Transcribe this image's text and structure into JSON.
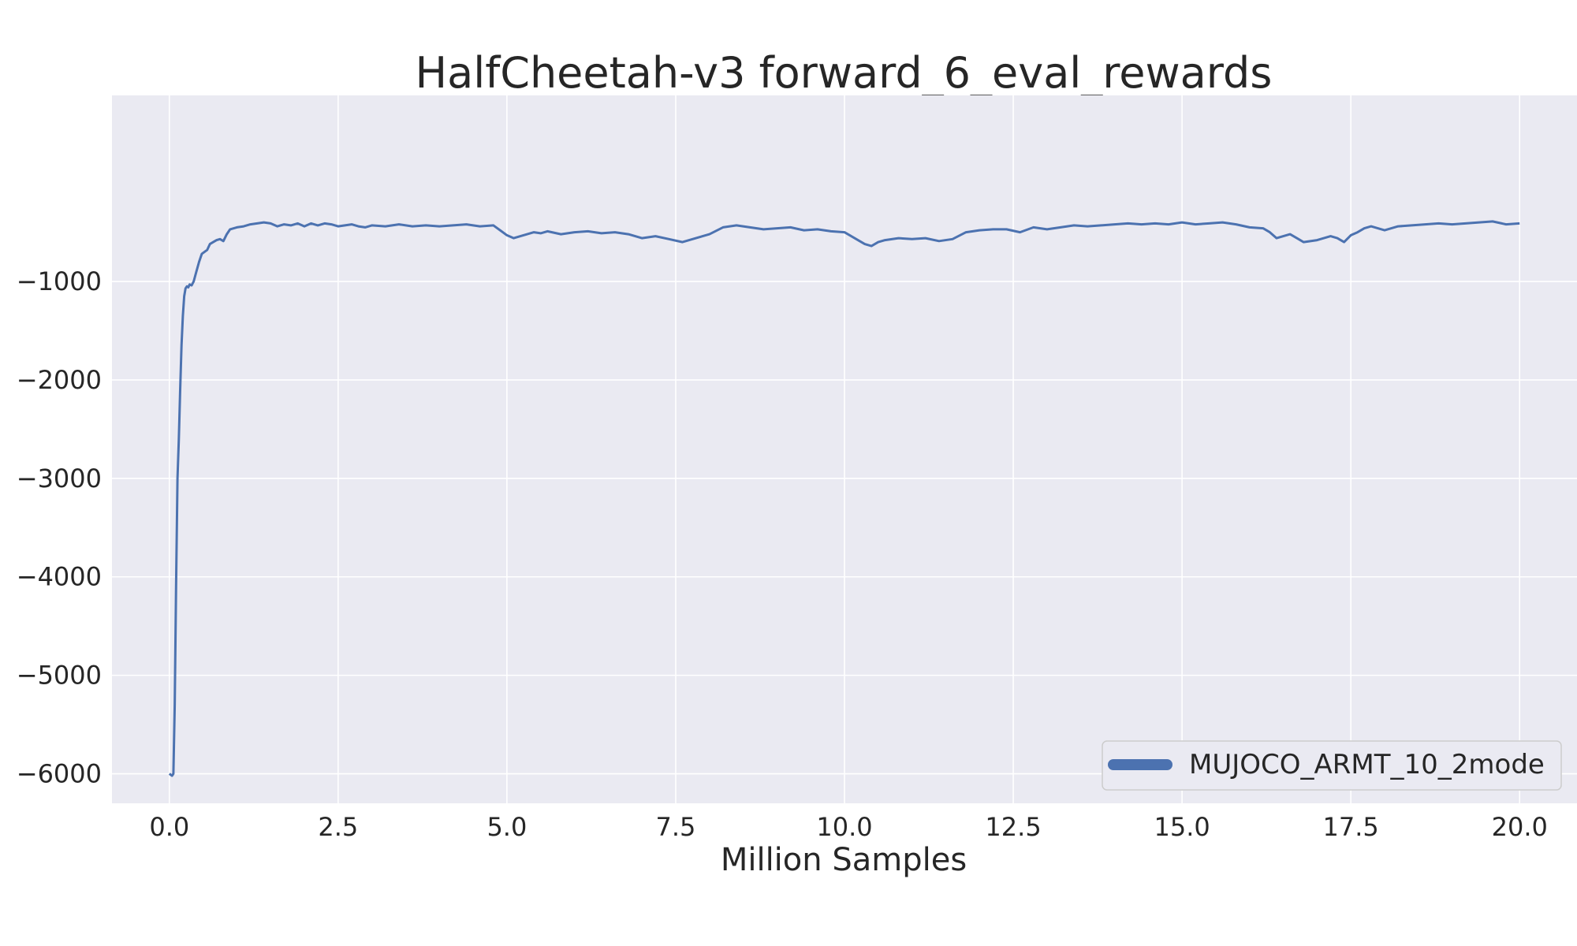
{
  "chart_data": {
    "type": "line",
    "title": "HalfCheetah-v3 forward_6_eval_rewards",
    "xlabel": "Million Samples",
    "ylabel": "",
    "xlim": [
      -0.85,
      20.85
    ],
    "ylim": [
      -6300,
      890
    ],
    "xticks": [
      0.0,
      2.5,
      5.0,
      7.5,
      10.0,
      12.5,
      15.0,
      17.5,
      20.0
    ],
    "xtick_labels": [
      "0.0",
      "2.5",
      "5.0",
      "7.5",
      "10.0",
      "12.5",
      "15.0",
      "17.5",
      "20.0"
    ],
    "yticks": [
      -6000,
      -5000,
      -4000,
      -3000,
      -2000,
      -1000
    ],
    "ytick_labels": [
      "−6000",
      "−5000",
      "−4000",
      "−3000",
      "−2000",
      "−1000"
    ],
    "grid": true,
    "legend_position": "bottom-right",
    "colors": {
      "plot_bg": "#eaeaf2",
      "grid": "#ffffff",
      "series": "#4c72b0"
    },
    "series": [
      {
        "name": "MUJOCO_ARMT_10_2mode",
        "x": [
          0.0,
          0.04,
          0.06,
          0.08,
          0.1,
          0.12,
          0.14,
          0.16,
          0.18,
          0.2,
          0.22,
          0.24,
          0.26,
          0.28,
          0.3,
          0.33,
          0.36,
          0.4,
          0.44,
          0.48,
          0.52,
          0.56,
          0.6,
          0.65,
          0.7,
          0.75,
          0.8,
          0.85,
          0.9,
          1.0,
          1.1,
          1.2,
          1.3,
          1.4,
          1.5,
          1.6,
          1.7,
          1.8,
          1.9,
          2.0,
          2.1,
          2.2,
          2.3,
          2.4,
          2.5,
          2.6,
          2.7,
          2.8,
          2.9,
          3.0,
          3.2,
          3.4,
          3.6,
          3.8,
          4.0,
          4.2,
          4.4,
          4.6,
          4.8,
          5.0,
          5.1,
          5.2,
          5.3,
          5.4,
          5.5,
          5.6,
          5.8,
          6.0,
          6.2,
          6.4,
          6.6,
          6.8,
          7.0,
          7.2,
          7.4,
          7.6,
          7.8,
          8.0,
          8.2,
          8.4,
          8.6,
          8.8,
          9.0,
          9.2,
          9.4,
          9.6,
          9.8,
          10.0,
          10.2,
          10.3,
          10.4,
          10.5,
          10.6,
          10.8,
          11.0,
          11.2,
          11.4,
          11.6,
          11.8,
          12.0,
          12.2,
          12.4,
          12.6,
          12.8,
          13.0,
          13.1,
          13.2,
          13.4,
          13.6,
          13.8,
          14.0,
          14.2,
          14.4,
          14.6,
          14.8,
          15.0,
          15.2,
          15.4,
          15.6,
          15.8,
          16.0,
          16.2,
          16.3,
          16.4,
          16.6,
          16.7,
          16.8,
          17.0,
          17.2,
          17.3,
          17.4,
          17.5,
          17.6,
          17.7,
          17.8,
          17.9,
          18.0,
          18.2,
          18.4,
          18.6,
          18.8,
          19.0,
          19.2,
          19.4,
          19.6,
          19.8,
          20.0
        ],
        "values": [
          -6000,
          -6020,
          -6000,
          -5300,
          -4100,
          -3000,
          -2600,
          -2100,
          -1650,
          -1350,
          -1150,
          -1070,
          -1050,
          -1060,
          -1030,
          -1040,
          -1000,
          -900,
          -800,
          -720,
          -700,
          -680,
          -620,
          -600,
          -580,
          -570,
          -590,
          -520,
          -470,
          -450,
          -440,
          -420,
          -410,
          -400,
          -410,
          -440,
          -420,
          -430,
          -410,
          -440,
          -410,
          -430,
          -410,
          -420,
          -440,
          -430,
          -420,
          -440,
          -450,
          -430,
          -440,
          -420,
          -440,
          -430,
          -440,
          -430,
          -420,
          -440,
          -430,
          -530,
          -560,
          -540,
          -520,
          -500,
          -510,
          -490,
          -520,
          -500,
          -490,
          -510,
          -500,
          -520,
          -560,
          -540,
          -570,
          -600,
          -560,
          -520,
          -450,
          -430,
          -450,
          -470,
          -460,
          -450,
          -480,
          -470,
          -490,
          -500,
          -580,
          -620,
          -640,
          -600,
          -580,
          -560,
          -570,
          -560,
          -590,
          -570,
          -500,
          -480,
          -470,
          -470,
          -500,
          -450,
          -470,
          -460,
          -450,
          -430,
          -440,
          -430,
          -420,
          -410,
          -420,
          -410,
          -420,
          -400,
          -420,
          -410,
          -400,
          -420,
          -450,
          -460,
          -500,
          -560,
          -520,
          -560,
          -600,
          -580,
          -540,
          -560,
          -600,
          -530,
          -500,
          -460,
          -440,
          -460,
          -480,
          -440,
          -430,
          -420,
          -410,
          -420,
          -410,
          -400,
          -390,
          -420,
          -410
        ]
      }
    ]
  }
}
